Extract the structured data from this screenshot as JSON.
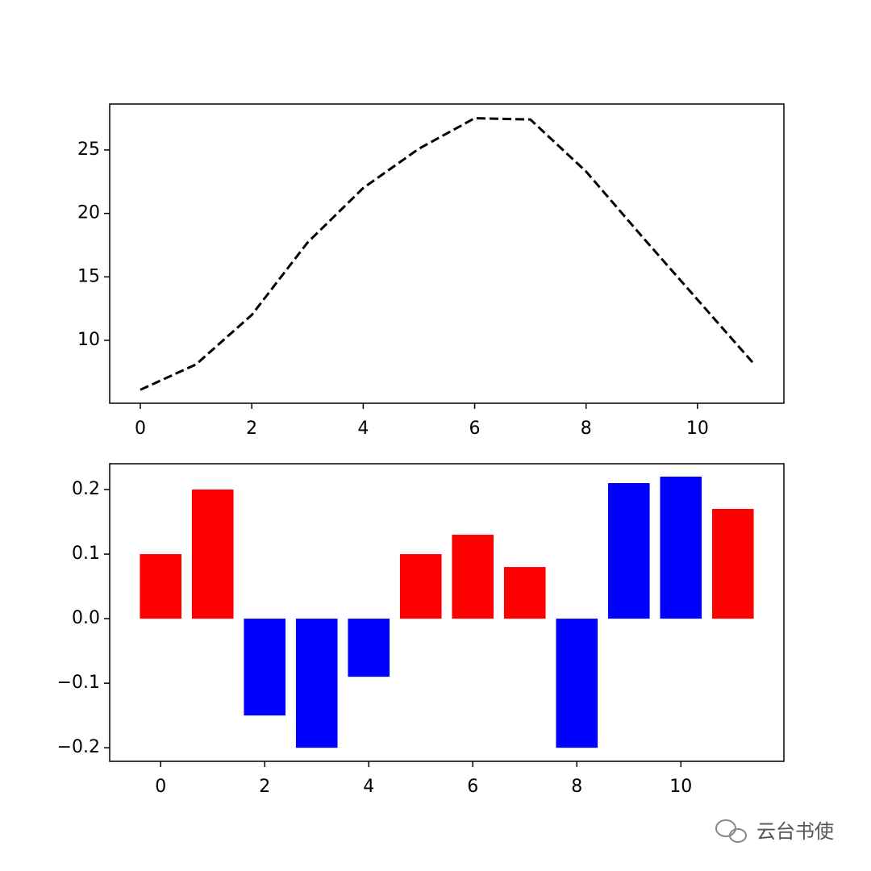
{
  "chart_data": [
    {
      "type": "line",
      "x": [
        0,
        1,
        2,
        3,
        4,
        5,
        6,
        7,
        8,
        9,
        10,
        11
      ],
      "values": [
        6.1,
        8.1,
        12.0,
        17.7,
        22.0,
        25.1,
        27.5,
        27.4,
        23.3,
        18.2,
        13.2,
        8.2
      ],
      "color": "#000000",
      "linestyle": "dashed",
      "xlim": [
        -0.55,
        11.55
      ],
      "xticks": [
        0,
        2,
        4,
        6,
        8,
        10
      ],
      "ylim": [
        5.04,
        28.62
      ],
      "yticks": [
        10,
        15,
        20,
        25
      ]
    },
    {
      "type": "bar",
      "x": [
        0,
        1,
        2,
        3,
        4,
        5,
        6,
        7,
        8,
        9,
        10,
        11
      ],
      "values": [
        0.1,
        0.2,
        -0.15,
        -0.2,
        -0.09,
        0.1,
        0.13,
        0.08,
        -0.2,
        0.21,
        0.22,
        0.17
      ],
      "colors": [
        "#ff0000",
        "#ff0000",
        "#0000ff",
        "#0000ff",
        "#0000ff",
        "#ff0000",
        "#ff0000",
        "#ff0000",
        "#0000ff",
        "#0000ff",
        "#0000ff",
        "#ff0000"
      ],
      "xlim": [
        -0.98,
        11.98
      ],
      "xticks": [
        0,
        2,
        4,
        6,
        8,
        10
      ],
      "ylim": [
        -0.221,
        0.24
      ],
      "yticks": [
        {
          "value": -0.2,
          "label": "−0.2"
        },
        {
          "value": -0.1,
          "label": "−0.1"
        },
        {
          "value": 0,
          "label": "0.0"
        },
        {
          "value": 0.1,
          "label": "0.1"
        },
        {
          "value": 0.2,
          "label": "0.2"
        }
      ]
    }
  ],
  "watermark": "云台书使"
}
